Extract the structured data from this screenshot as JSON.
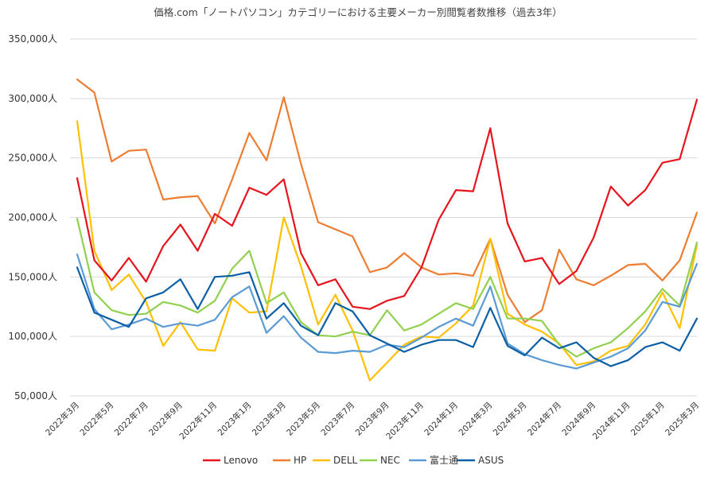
{
  "chart_data": {
    "type": "line",
    "title": "価格.com「ノートパソコン」カテゴリーにおける主要メーカー別閲覧者数推移（過去3年）",
    "xlabel": "",
    "ylabel": "",
    "ylim": [
      50000,
      350000
    ],
    "y_ticks": [
      50000,
      100000,
      150000,
      200000,
      250000,
      300000,
      350000
    ],
    "y_tick_labels": [
      "50,000人",
      "100,000人",
      "150,000人",
      "200,000人",
      "250,000人",
      "300,000人",
      "350,000人"
    ],
    "grid": true,
    "legend_position": "bottom",
    "x": [
      "2022-03",
      "2022-04",
      "2022-05",
      "2022-06",
      "2022-07",
      "2022-08",
      "2022-09",
      "2022-10",
      "2022-11",
      "2022-12",
      "2023-01",
      "2023-02",
      "2023-03",
      "2023-04",
      "2023-05",
      "2023-06",
      "2023-07",
      "2023-08",
      "2023-09",
      "2023-10",
      "2023-11",
      "2023-12",
      "2024-01",
      "2024-02",
      "2024-03",
      "2024-04",
      "2024-05",
      "2024-06",
      "2024-07",
      "2024-08",
      "2024-09",
      "2024-10",
      "2024-11",
      "2024-12",
      "2025-01",
      "2025-02",
      "2025-03"
    ],
    "x_tick_labels": [
      "2022年3月",
      "2022年5月",
      "2022年7月",
      "2022年9月",
      "2022年11月",
      "2023年1月",
      "2023年3月",
      "2023年5月",
      "2023年7月",
      "2023年9月",
      "2023年11月",
      "2024年1月",
      "2024年3月",
      "2024年5月",
      "2024年7月",
      "2024年9月",
      "2024年11月",
      "2025年1月",
      "2025年3月"
    ],
    "series": [
      {
        "name": "Lenovo",
        "color": "#e8141d",
        "values": [
          233000,
          164000,
          147000,
          166000,
          146000,
          176000,
          194000,
          172000,
          203000,
          193000,
          225000,
          219000,
          232000,
          170000,
          143000,
          148000,
          125000,
          123000,
          130000,
          134000,
          158000,
          198000,
          223000,
          222000,
          275000,
          195000,
          163000,
          166000,
          144000,
          155000,
          183000,
          226000,
          210000,
          223000,
          246000,
          249000,
          299000
        ]
      },
      {
        "name": "HP",
        "color": "#ed7d31",
        "values": [
          316000,
          305000,
          247000,
          256000,
          257000,
          215000,
          217000,
          218000,
          195000,
          232000,
          271000,
          248000,
          301000,
          245000,
          196000,
          190000,
          184000,
          154000,
          158000,
          170000,
          158000,
          152000,
          153000,
          151000,
          182000,
          135000,
          112000,
          122000,
          173000,
          148000,
          143000,
          151000,
          160000,
          161000,
          147000,
          164000,
          204000
        ]
      },
      {
        "name": "DELL",
        "color": "#ffc000",
        "values": [
          281000,
          172000,
          139000,
          152000,
          129000,
          92000,
          112000,
          89000,
          88000,
          132000,
          120000,
          121000,
          200000,
          159000,
          110000,
          135000,
          105000,
          63000,
          78000,
          93000,
          100000,
          99000,
          111000,
          126000,
          182000,
          119000,
          110000,
          104000,
          94000,
          76000,
          79000,
          88000,
          92000,
          110000,
          137000,
          107000,
          177000
        ]
      },
      {
        "name": "NEC",
        "color": "#92d050",
        "values": [
          199000,
          137000,
          122000,
          118000,
          119000,
          129000,
          126000,
          120000,
          130000,
          157000,
          172000,
          128000,
          137000,
          112000,
          101000,
          100000,
          104000,
          101000,
          122000,
          105000,
          110000,
          119000,
          128000,
          123000,
          150000,
          115000,
          115000,
          113000,
          93000,
          83000,
          90000,
          95000,
          107000,
          121000,
          140000,
          126000,
          179000
        ]
      },
      {
        "name": "富士通",
        "color": "#5b9bd5",
        "values": [
          169000,
          123000,
          106000,
          110000,
          115000,
          108000,
          111000,
          109000,
          114000,
          133000,
          142000,
          103000,
          117000,
          99000,
          87000,
          86000,
          88000,
          87000,
          93000,
          91000,
          99000,
          108000,
          115000,
          109000,
          142000,
          94000,
          85000,
          80000,
          76000,
          73000,
          78000,
          83000,
          90000,
          105000,
          129000,
          125000,
          161000
        ]
      },
      {
        "name": "ASUS",
        "color": "#0d5fa6",
        "values": [
          158000,
          120000,
          114000,
          108000,
          132000,
          137000,
          148000,
          123000,
          150000,
          151000,
          154000,
          115000,
          128000,
          109000,
          101000,
          128000,
          121000,
          101000,
          94000,
          87000,
          93000,
          97000,
          97000,
          91000,
          124000,
          92000,
          84000,
          99000,
          90000,
          95000,
          82000,
          75000,
          80000,
          91000,
          95000,
          88000,
          115000
        ]
      }
    ]
  }
}
